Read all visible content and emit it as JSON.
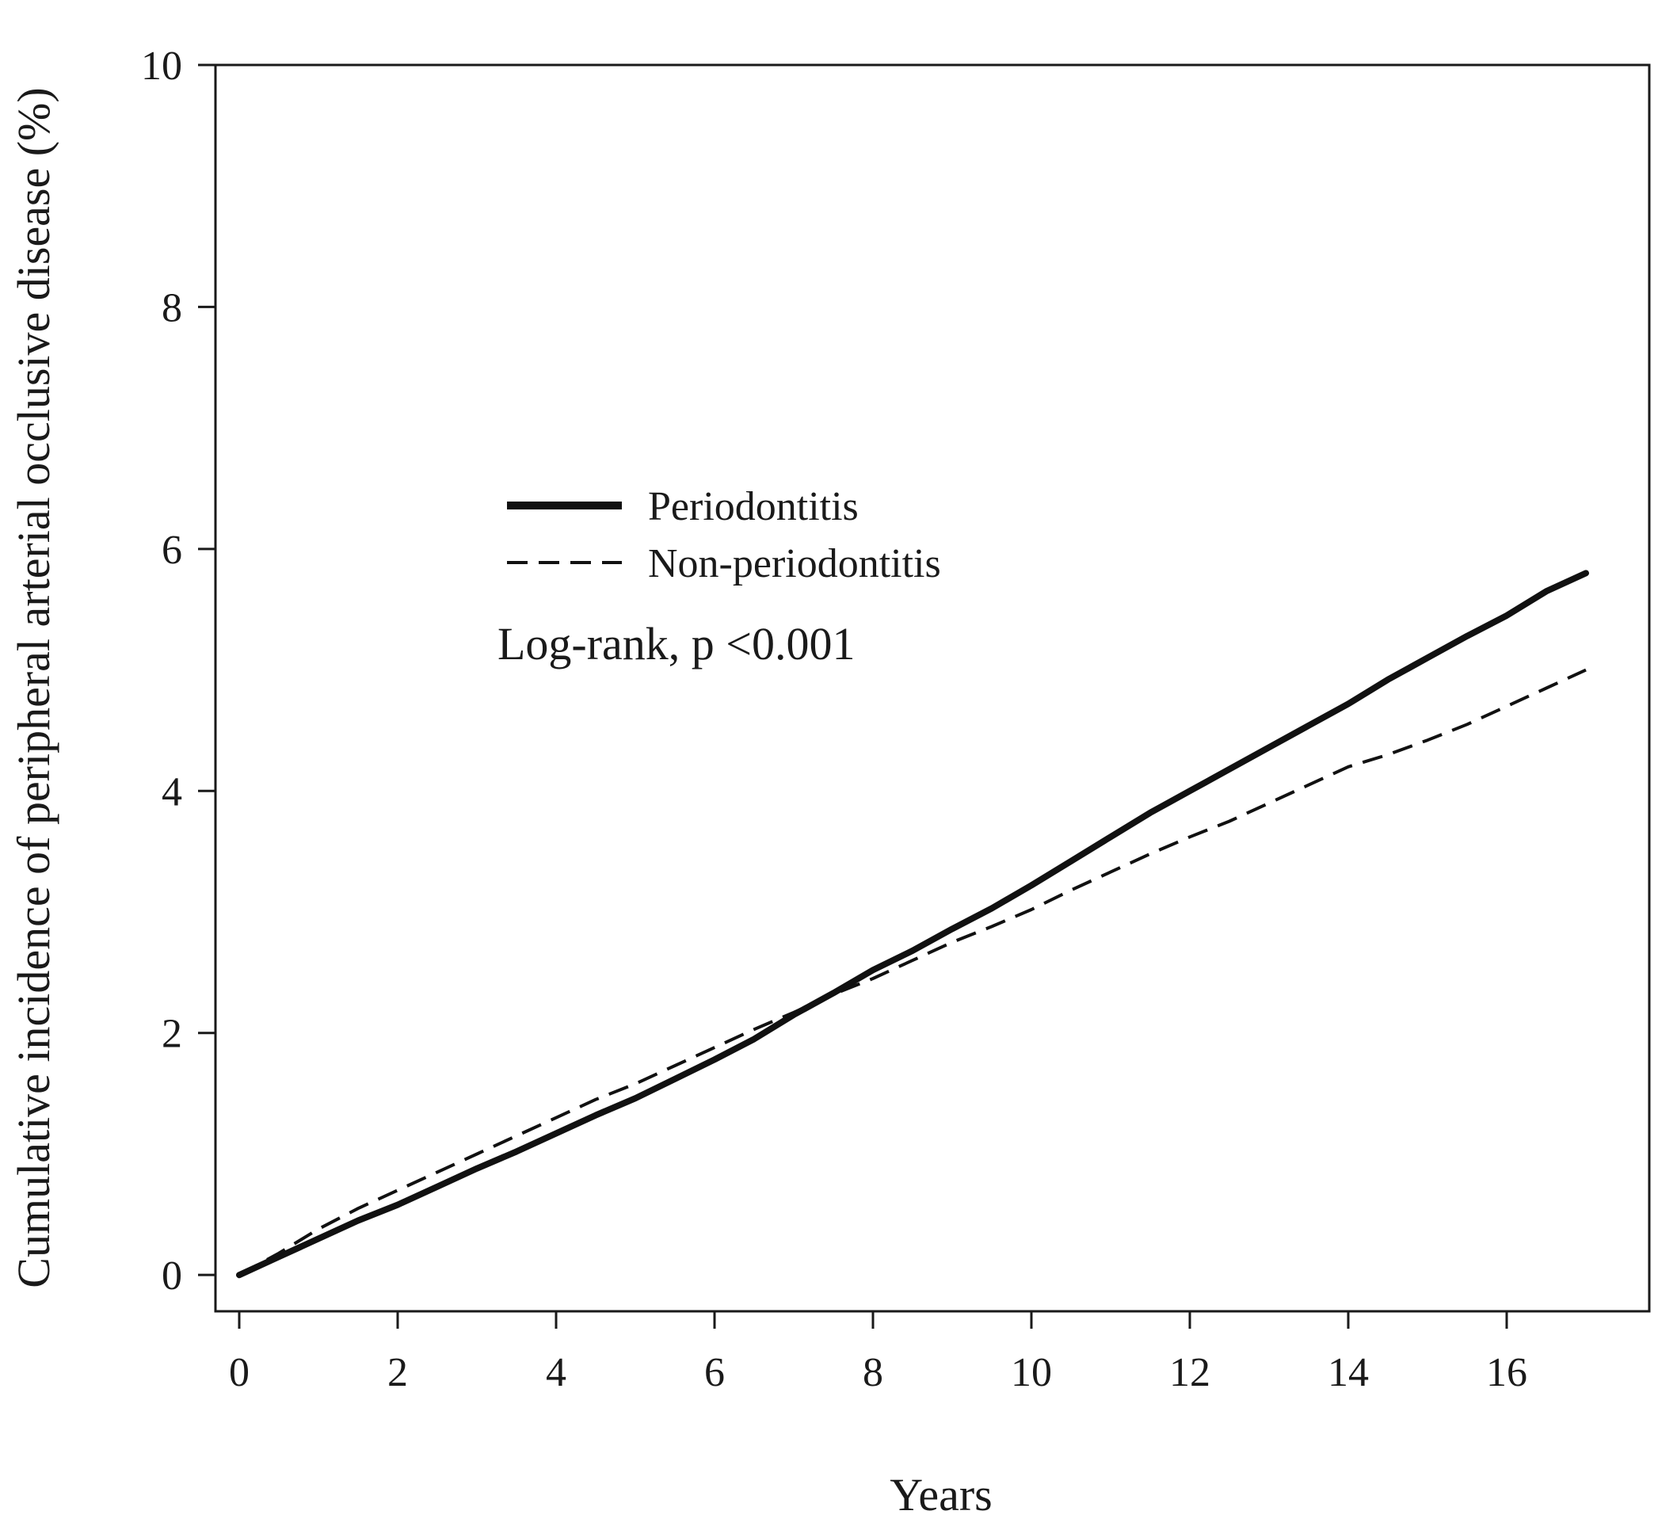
{
  "chart_data": {
    "type": "line",
    "title": "",
    "xlabel": "Years",
    "ylabel": "Cumulative incidence of peripheral arterial occlusive disease (%)",
    "xlim": [
      -0.3,
      17.8
    ],
    "ylim": [
      -0.3,
      10
    ],
    "xticks": [
      0,
      2,
      4,
      6,
      8,
      10,
      12,
      14,
      16
    ],
    "yticks": [
      0,
      2,
      4,
      6,
      8,
      10
    ],
    "grid": false,
    "legend_position": "upper-left-center",
    "annotation": "Log-rank, p <0.001",
    "series": [
      {
        "name": "Periodontitis",
        "style": "solid",
        "x": [
          0,
          0.5,
          1,
          1.5,
          2,
          2.5,
          3,
          3.5,
          4,
          4.5,
          5,
          5.5,
          6,
          6.5,
          7,
          7.5,
          8,
          8.5,
          9,
          9.5,
          10,
          10.5,
          11,
          11.5,
          12,
          12.5,
          13,
          13.5,
          14,
          14.5,
          15,
          15.5,
          16,
          16.5,
          17
        ],
        "y": [
          0,
          0.15,
          0.3,
          0.45,
          0.58,
          0.73,
          0.88,
          1.02,
          1.17,
          1.32,
          1.46,
          1.62,
          1.78,
          1.95,
          2.15,
          2.33,
          2.52,
          2.68,
          2.86,
          3.03,
          3.22,
          3.42,
          3.62,
          3.82,
          4.0,
          4.18,
          4.36,
          4.54,
          4.72,
          4.92,
          5.1,
          5.28,
          5.45,
          5.65,
          5.8
        ]
      },
      {
        "name": "Non-periodontitis",
        "style": "dashed",
        "x": [
          0,
          0.5,
          1,
          1.5,
          2,
          2.5,
          3,
          3.5,
          4,
          4.5,
          5,
          5.5,
          6,
          6.5,
          7,
          7.5,
          8,
          8.5,
          9,
          9.5,
          10,
          10.5,
          11,
          11.5,
          12,
          12.5,
          13,
          13.5,
          14,
          14.5,
          15,
          15.5,
          16,
          16.5,
          17
        ],
        "y": [
          0,
          0.18,
          0.38,
          0.55,
          0.7,
          0.85,
          1.0,
          1.15,
          1.3,
          1.45,
          1.58,
          1.73,
          1.88,
          2.03,
          2.17,
          2.32,
          2.45,
          2.6,
          2.75,
          2.88,
          3.02,
          3.18,
          3.33,
          3.48,
          3.62,
          3.75,
          3.9,
          4.05,
          4.2,
          4.3,
          4.42,
          4.55,
          4.7,
          4.85,
          5.0
        ]
      }
    ]
  }
}
